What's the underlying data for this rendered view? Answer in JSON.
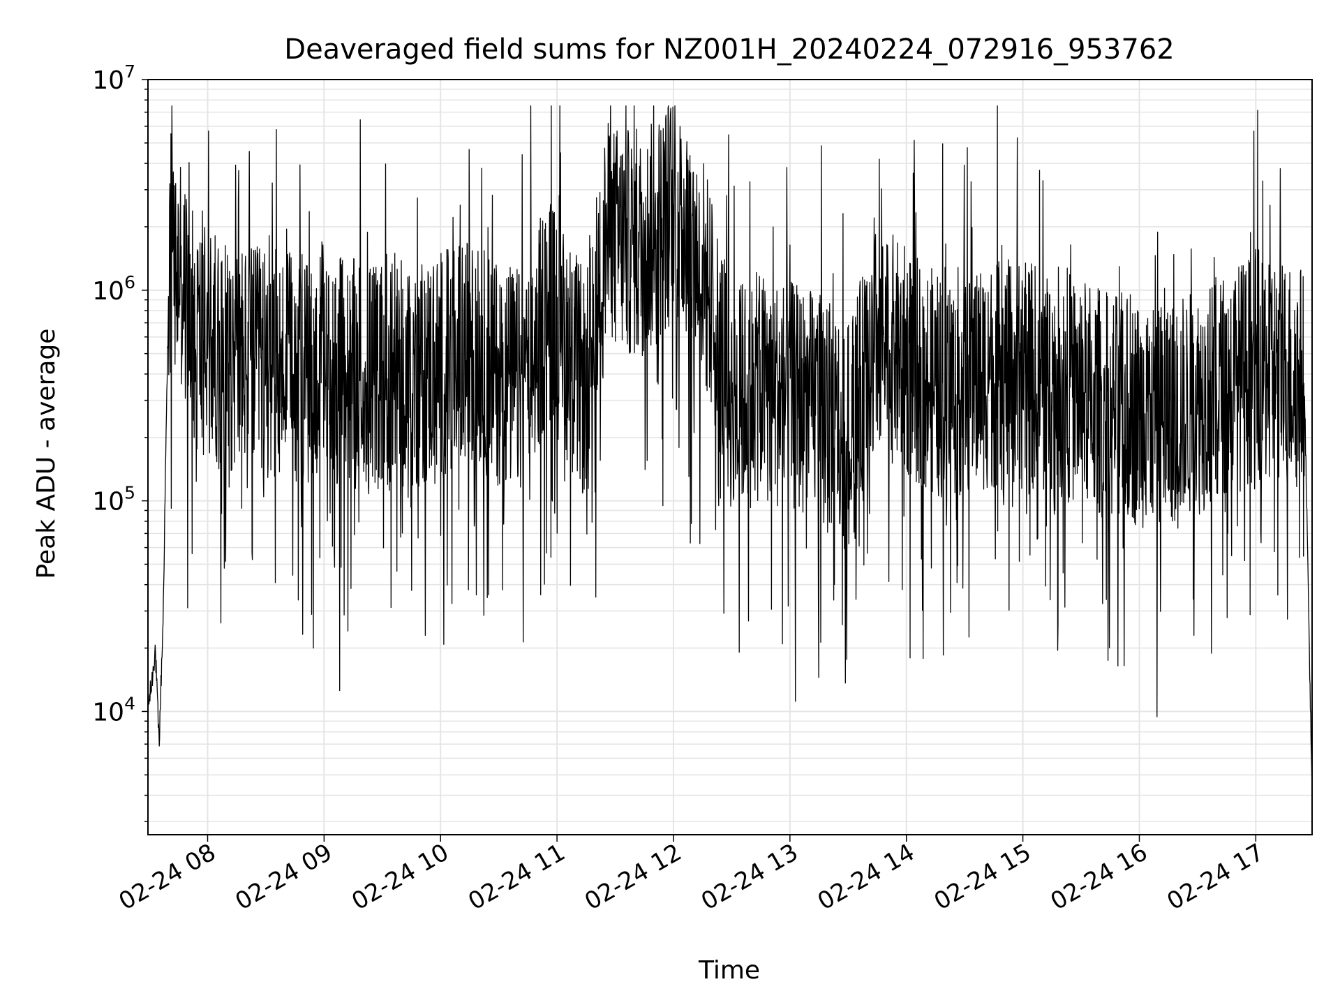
{
  "chart_data": {
    "type": "line",
    "title": "Deaveraged field sums for NZ001H_20240224_072916_953762",
    "xlabel": "Time",
    "ylabel": "Peak ADU - average",
    "yscale": "log",
    "ylim": [
      2600,
      10000000
    ],
    "xlim": [
      "2024-02-24T07:29:16",
      "2024-02-24T17:29:00"
    ],
    "grid": true,
    "line_color": "#000000",
    "grid_color": "#e5e5e5",
    "x_ticks": [
      {
        "t": "2024-02-24T08:00",
        "label": "02-24 08"
      },
      {
        "t": "2024-02-24T09:00",
        "label": "02-24 09"
      },
      {
        "t": "2024-02-24T10:00",
        "label": "02-24 10"
      },
      {
        "t": "2024-02-24T11:00",
        "label": "02-24 11"
      },
      {
        "t": "2024-02-24T12:00",
        "label": "02-24 12"
      },
      {
        "t": "2024-02-24T13:00",
        "label": "02-24 13"
      },
      {
        "t": "2024-02-24T14:00",
        "label": "02-24 14"
      },
      {
        "t": "2024-02-24T15:00",
        "label": "02-24 15"
      },
      {
        "t": "2024-02-24T16:00",
        "label": "02-24 16"
      },
      {
        "t": "2024-02-24T17:00",
        "label": "02-24 17"
      }
    ],
    "y_ticks": [
      {
        "value": 10000,
        "base": "10",
        "exp": "4"
      },
      {
        "value": 100000,
        "base": "10",
        "exp": "5"
      },
      {
        "value": 1000000,
        "base": "10",
        "exp": "6"
      },
      {
        "value": 10000000,
        "base": "10",
        "exp": "7"
      }
    ],
    "series": [
      {
        "points": [
          [
            "2024-02-24T07:29:16",
            10500
          ],
          [
            "2024-02-24T07:31:00",
            13000
          ],
          [
            "2024-02-24T07:33:00",
            20000
          ],
          [
            "2024-02-24T07:35:00",
            7000
          ],
          [
            "2024-02-24T07:37:00",
            26000
          ],
          [
            "2024-02-24T07:40:00",
            1150000
          ],
          [
            "2024-02-24T07:45:00",
            1200000
          ],
          [
            "2024-02-24T07:55:00",
            600000
          ],
          [
            "2024-02-24T08:15:00",
            480000
          ],
          [
            "2024-02-24T08:45:00",
            420000
          ],
          [
            "2024-02-24T09:15:00",
            400000
          ],
          [
            "2024-02-24T09:45:00",
            390000
          ],
          [
            "2024-02-24T10:15:00",
            500000
          ],
          [
            "2024-02-24T10:45:00",
            340000
          ],
          [
            "2024-02-24T10:55:00",
            900000
          ],
          [
            "2024-02-24T11:15:00",
            330000
          ],
          [
            "2024-02-24T11:25:00",
            1800000
          ],
          [
            "2024-02-24T11:45:00",
            1600000
          ],
          [
            "2024-02-24T12:00:00",
            2500000
          ],
          [
            "2024-02-24T12:15:00",
            1300000
          ],
          [
            "2024-02-24T12:30:00",
            300000
          ],
          [
            "2024-02-24T12:45:00",
            350000
          ],
          [
            "2024-02-24T13:15:00",
            280000
          ],
          [
            "2024-02-24T13:30:00",
            200000
          ],
          [
            "2024-02-24T13:45:00",
            600000
          ],
          [
            "2024-02-24T14:15:00",
            350000
          ],
          [
            "2024-02-24T14:45:00",
            400000
          ],
          [
            "2024-02-24T15:15:00",
            380000
          ],
          [
            "2024-02-24T15:45:00",
            280000
          ],
          [
            "2024-02-24T16:15:00",
            250000
          ],
          [
            "2024-02-24T16:45:00",
            350000
          ],
          [
            "2024-02-24T17:00:00",
            450000
          ],
          [
            "2024-02-24T17:25:00",
            380000
          ],
          [
            "2024-02-24T17:27:00",
            40000
          ],
          [
            "2024-02-24T17:29:00",
            3800
          ]
        ]
      }
    ]
  }
}
